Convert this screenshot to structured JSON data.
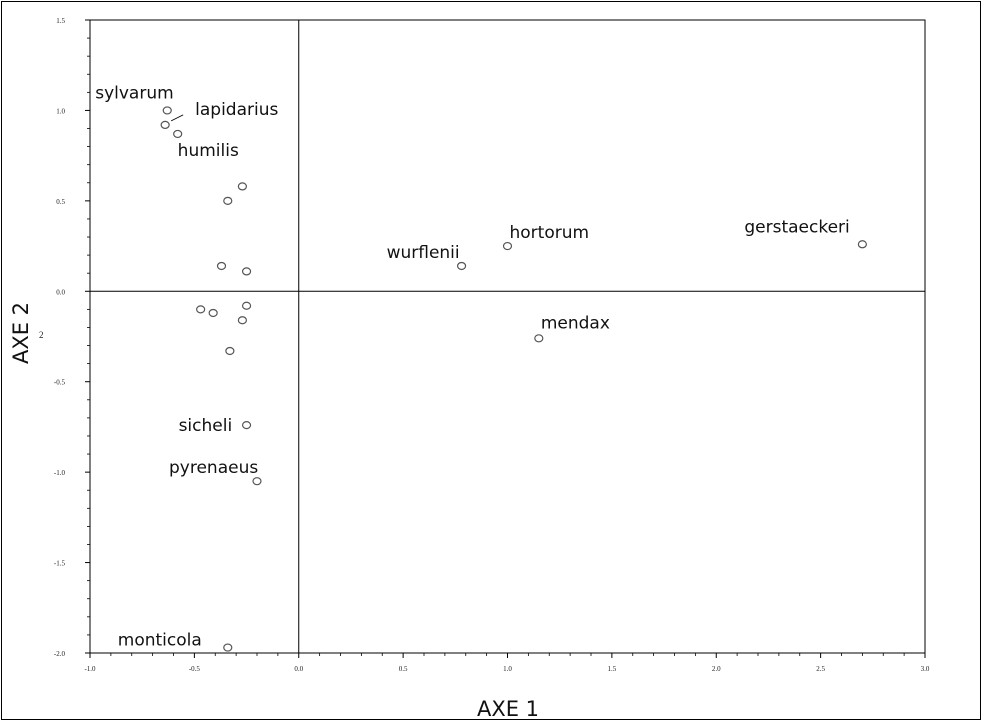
{
  "chart_data": {
    "type": "scatter",
    "xlabel": "AXE 1",
    "ylabel": "AXE 2",
    "xlim": [
      -1.0,
      3.0
    ],
    "ylim": [
      -2.0,
      1.5
    ],
    "x_ticks": [
      {
        "v": -1.0,
        "label": "-1.0"
      },
      {
        "v": -0.5,
        "label": "-0.5"
      },
      {
        "v": 0.0,
        "label": "0.0"
      },
      {
        "v": 0.5,
        "label": "0.5"
      },
      {
        "v": 1.0,
        "label": "1.0"
      },
      {
        "v": 1.5,
        "label": "1.5"
      },
      {
        "v": 2.0,
        "label": "2.0"
      },
      {
        "v": 2.5,
        "label": "2.5"
      },
      {
        "v": 3.0,
        "label": "3.0"
      }
    ],
    "y_ticks": [
      {
        "v": 1.5,
        "label": "1.5"
      },
      {
        "v": 1.0,
        "label": "1.0"
      },
      {
        "v": 0.5,
        "label": "0.5"
      },
      {
        "v": 0.0,
        "label": "0.0"
      },
      {
        "v": -0.5,
        "label": "-0.5"
      },
      {
        "v": -1.0,
        "label": "-1.0"
      },
      {
        "v": -1.5,
        "label": "-1.5"
      },
      {
        "v": -2.0,
        "label": "-2.0"
      }
    ],
    "reference_lines": {
      "x": 0.0,
      "y": 0.0
    },
    "stray_label": "2",
    "points": [
      {
        "name": "sylvarum",
        "x": -0.63,
        "y": 1.0
      },
      {
        "name": "lapidarius",
        "x": -0.64,
        "y": 0.92
      },
      {
        "name": "humilis",
        "x": -0.58,
        "y": 0.87
      },
      {
        "name": "",
        "x": -0.27,
        "y": 0.58
      },
      {
        "name": "",
        "x": -0.34,
        "y": 0.5
      },
      {
        "name": "",
        "x": -0.37,
        "y": 0.14
      },
      {
        "name": "",
        "x": -0.25,
        "y": 0.11
      },
      {
        "name": "",
        "x": -0.47,
        "y": -0.1
      },
      {
        "name": "",
        "x": -0.41,
        "y": -0.12
      },
      {
        "name": "",
        "x": -0.25,
        "y": -0.08
      },
      {
        "name": "",
        "x": -0.27,
        "y": -0.16
      },
      {
        "name": "",
        "x": -0.33,
        "y": -0.33
      },
      {
        "name": "wurflenii",
        "x": 0.78,
        "y": 0.14
      },
      {
        "name": "hortorum",
        "x": 1.0,
        "y": 0.25
      },
      {
        "name": "gerstaeckeri",
        "x": 2.7,
        "y": 0.26
      },
      {
        "name": "mendax",
        "x": 1.15,
        "y": -0.26
      },
      {
        "name": "sicheli",
        "x": -0.25,
        "y": -0.74
      },
      {
        "name": "pyrenaeus",
        "x": -0.2,
        "y": -1.05
      },
      {
        "name": "monticola",
        "x": -0.34,
        "y": -1.97
      }
    ]
  }
}
